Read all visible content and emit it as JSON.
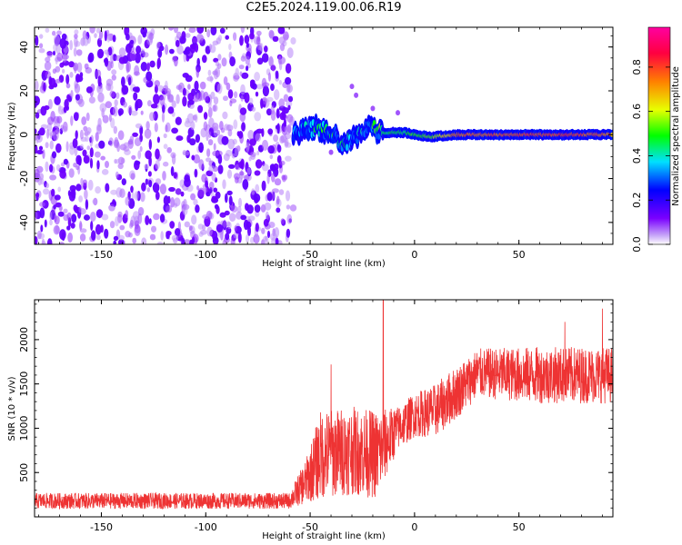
{
  "title": "C2E5.2024.119.00.06.R19",
  "chart_data": [
    {
      "type": "heatmap",
      "xlabel": "Height of straight line (km)",
      "ylabel": "Frequency (Hz)",
      "xlim": [
        -182,
        95
      ],
      "ylim": [
        -50,
        49
      ],
      "xticks": [
        -150,
        -100,
        -50,
        0,
        50
      ],
      "yticks": [
        -40,
        -20,
        0,
        20,
        40
      ],
      "colorbar": {
        "label": "Normalized spectral amplitude",
        "range": [
          0.0,
          0.98
        ],
        "ticks": [
          0.0,
          0.2,
          0.4,
          0.6,
          0.8
        ],
        "colors": [
          "#ffffff",
          "#c8a8f8",
          "#7a00ff",
          "#0000ff",
          "#00e0ff",
          "#00ff00",
          "#e8ff00",
          "#ff8000",
          "#ff0040",
          "#ff00a0"
        ]
      },
      "noise_region": {
        "x": [
          -182,
          -58
        ],
        "y": [
          -50,
          49
        ],
        "amplitude": [
          0.02,
          0.15
        ]
      },
      "signal_track": [
        {
          "x": -58,
          "y": 0,
          "amplitude": 0.3
        },
        {
          "x": -50,
          "y": 3,
          "amplitude": 0.35
        },
        {
          "x": -40,
          "y": 2,
          "amplitude": 0.4
        },
        {
          "x": -35,
          "y": -4,
          "amplitude": 0.4
        },
        {
          "x": -28,
          "y": -1,
          "amplitude": 0.35
        },
        {
          "x": -22,
          "y": 3,
          "amplitude": 0.35
        },
        {
          "x": -15,
          "y": 1,
          "amplitude": 0.5
        },
        {
          "x": -5,
          "y": 1,
          "amplitude": 0.5
        },
        {
          "x": 0,
          "y": 0,
          "amplitude": 0.55
        },
        {
          "x": 8,
          "y": -1,
          "amplitude": 0.6
        },
        {
          "x": 20,
          "y": 0,
          "amplitude": 0.8
        },
        {
          "x": 50,
          "y": 0,
          "amplitude": 0.85
        },
        {
          "x": 80,
          "y": 0,
          "amplitude": 0.85
        },
        {
          "x": 95,
          "y": 0,
          "amplitude": 0.8
        }
      ]
    },
    {
      "type": "line",
      "xlabel": "Height of straight line (km)",
      "ylabel": "SNR (10 * v/v)",
      "xlim": [
        -182,
        95
      ],
      "ylim": [
        0,
        2450
      ],
      "xticks": [
        -150,
        -100,
        -50,
        0,
        50
      ],
      "yticks": [
        500,
        1000,
        1500,
        2000
      ],
      "color": "#ee3333",
      "spikes": [
        {
          "x": -15,
          "y": 2450
        },
        {
          "x": -40,
          "y": 1720
        },
        {
          "x": 72,
          "y": 2200
        },
        {
          "x": 90,
          "y": 2350
        }
      ],
      "envelope": [
        {
          "x": -182,
          "mean": 180,
          "amp": 90
        },
        {
          "x": -60,
          "mean": 180,
          "amp": 90
        },
        {
          "x": -52,
          "mean": 400,
          "amp": 250
        },
        {
          "x": -45,
          "mean": 700,
          "amp": 500
        },
        {
          "x": -30,
          "mean": 750,
          "amp": 500
        },
        {
          "x": -18,
          "mean": 700,
          "amp": 500
        },
        {
          "x": -8,
          "mean": 1000,
          "amp": 250
        },
        {
          "x": 0,
          "mean": 1150,
          "amp": 250
        },
        {
          "x": 10,
          "mean": 1200,
          "amp": 300
        },
        {
          "x": 20,
          "mean": 1400,
          "amp": 300
        },
        {
          "x": 30,
          "mean": 1620,
          "amp": 280
        },
        {
          "x": 60,
          "mean": 1600,
          "amp": 320
        },
        {
          "x": 95,
          "mean": 1600,
          "amp": 320
        }
      ]
    }
  ]
}
